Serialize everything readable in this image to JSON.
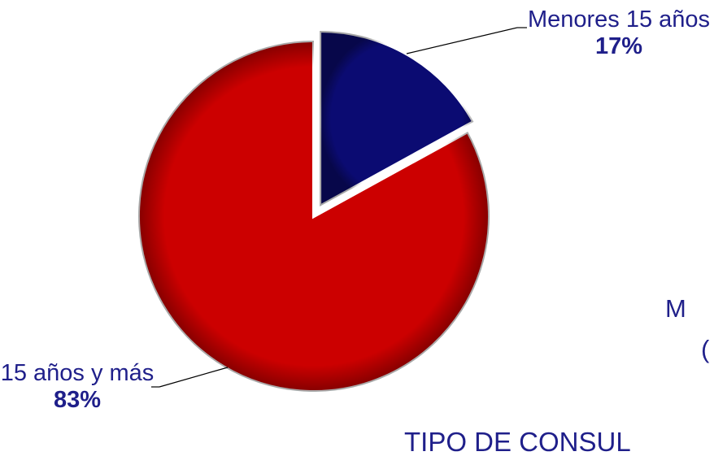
{
  "chart_data": {
    "type": "pie",
    "categories": [
      "Menores 15 años",
      "15 años y más"
    ],
    "values": [
      17,
      83
    ],
    "value_labels": [
      "17%",
      "83%"
    ],
    "colors": [
      "#0b0b72",
      "#cc0000"
    ],
    "annotations": [
      "M",
      "(",
      "TIPO DE CONSUL"
    ]
  }
}
